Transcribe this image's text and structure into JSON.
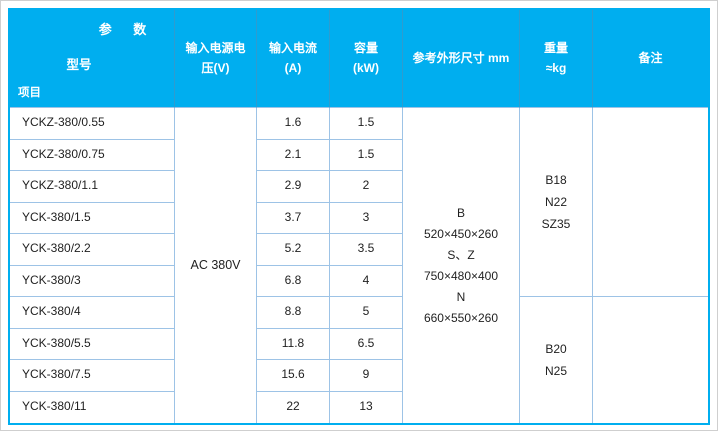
{
  "table": {
    "header": {
      "corner": {
        "param": "参 数",
        "model": "型号",
        "item": "项目"
      },
      "columns": [
        {
          "label": "输入电源电\n压(V)"
        },
        {
          "label": "输入电流\n(A)"
        },
        {
          "label": "容量\n(kW)"
        },
        {
          "label": "参考外形尺寸 mm"
        },
        {
          "label": "重量\n≈kg"
        },
        {
          "label": "备注"
        }
      ]
    },
    "voltage_value": "AC 380V",
    "dimensions_value": "B\n520×450×260\nS、Z\n750×480×400\nN\n660×550×260",
    "weight_groups": [
      {
        "value": "B18\nN22\nSZ35"
      },
      {
        "value": "B20\nN25"
      }
    ],
    "remarks_groups": [
      {
        "value": ""
      },
      {
        "value": ""
      }
    ],
    "rows": [
      {
        "model": "YCKZ-380/0.55",
        "current": "1.6",
        "capacity": "1.5"
      },
      {
        "model": "YCKZ-380/0.75",
        "current": "2.1",
        "capacity": "1.5"
      },
      {
        "model": "YCKZ-380/1.1",
        "current": "2.9",
        "capacity": "2"
      },
      {
        "model": "YCK-380/1.5",
        "current": "3.7",
        "capacity": "3"
      },
      {
        "model": "YCK-380/2.2",
        "current": "5.2",
        "capacity": "3.5"
      },
      {
        "model": "YCK-380/3",
        "current": "6.8",
        "capacity": "4"
      },
      {
        "model": "YCK-380/4",
        "current": "8.8",
        "capacity": "5"
      },
      {
        "model": "YCK-380/5.5",
        "current": "11.8",
        "capacity": "6.5"
      },
      {
        "model": "YCK-380/7.5",
        "current": "15.6",
        "capacity": "9"
      },
      {
        "model": "YCK-380/11",
        "current": "22",
        "capacity": "13"
      }
    ],
    "colors": {
      "header_bg": "#00AEEF",
      "grid_border": "#9DC3E6",
      "header_divider": "#2E9CCF",
      "text": "#1F1F1F"
    }
  }
}
